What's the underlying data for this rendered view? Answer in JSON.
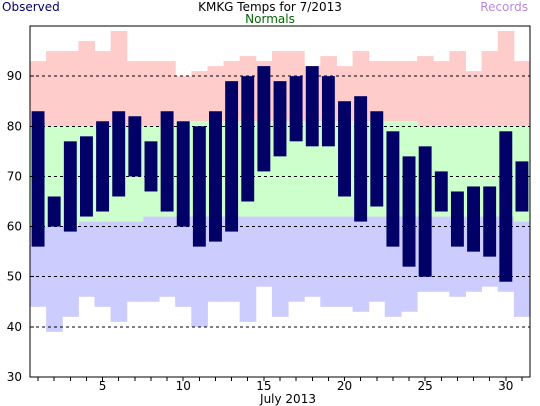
{
  "chart_data": {
    "type": "bar",
    "title": "KMKG Temps for 7/2013",
    "xlabel": "July 2013",
    "legend": {
      "observed": "Observed",
      "normals": "Normals",
      "records": "Records"
    },
    "colors": {
      "observed": "#000066",
      "normals_fill": "#ccffcc",
      "record_high_fill": "#ffcccc",
      "record_low_fill": "#ccccff",
      "title_text": "#000000",
      "observed_text": "#000066",
      "normals_text": "#006600",
      "records_text": "#bb88dd",
      "grid": "#000000",
      "axis_text": "#000000"
    },
    "ylim": [
      30,
      100
    ],
    "yticks": [
      30,
      40,
      50,
      60,
      70,
      80,
      90
    ],
    "xlim": [
      0.5,
      31.5
    ],
    "xticks": [
      5,
      10,
      15,
      20,
      25,
      30
    ],
    "gridlines_y": [
      40,
      50,
      60,
      70,
      80,
      90
    ],
    "days": [
      1,
      2,
      3,
      4,
      5,
      6,
      7,
      8,
      9,
      10,
      11,
      12,
      13,
      14,
      15,
      16,
      17,
      18,
      19,
      20,
      21,
      22,
      23,
      24,
      25,
      26,
      27,
      28,
      29,
      30,
      31
    ],
    "record_high": [
      93,
      95,
      95,
      97,
      95,
      99,
      93,
      93,
      93,
      90,
      91,
      92,
      93,
      94,
      93,
      95,
      95,
      92,
      94,
      92,
      95,
      93,
      93,
      93,
      94,
      93,
      95,
      91,
      95,
      99,
      93
    ],
    "normal_high": [
      80,
      80,
      80,
      80,
      80,
      80,
      80,
      80,
      80,
      81,
      81,
      81,
      81,
      81,
      81,
      81,
      81,
      81,
      81,
      81,
      81,
      81,
      81,
      81,
      80,
      80,
      80,
      80,
      80,
      80,
      80
    ],
    "normal_low": [
      60,
      60,
      60,
      61,
      61,
      61,
      61,
      62,
      62,
      62,
      62,
      62,
      62,
      62,
      62,
      62,
      62,
      62,
      62,
      62,
      62,
      62,
      62,
      62,
      62,
      62,
      62,
      62,
      62,
      62,
      61
    ],
    "record_low": [
      44,
      39,
      42,
      46,
      44,
      41,
      45,
      45,
      46,
      44,
      40,
      45,
      45,
      41,
      48,
      42,
      45,
      46,
      44,
      44,
      43,
      45,
      42,
      43,
      47,
      47,
      46,
      47,
      48,
      47,
      42
    ],
    "observed_high": [
      83,
      66,
      77,
      78,
      81,
      83,
      82,
      77,
      83,
      81,
      80,
      83,
      89,
      90,
      92,
      89,
      90,
      92,
      90,
      85,
      86,
      83,
      79,
      74,
      76,
      71,
      67,
      68,
      68,
      79,
      73
    ],
    "observed_low": [
      56,
      60,
      59,
      62,
      63,
      66,
      70,
      67,
      63,
      60,
      56,
      57,
      59,
      65,
      71,
      74,
      77,
      76,
      76,
      66,
      61,
      64,
      56,
      52,
      50,
      63,
      56,
      55,
      54,
      49,
      63
    ]
  }
}
